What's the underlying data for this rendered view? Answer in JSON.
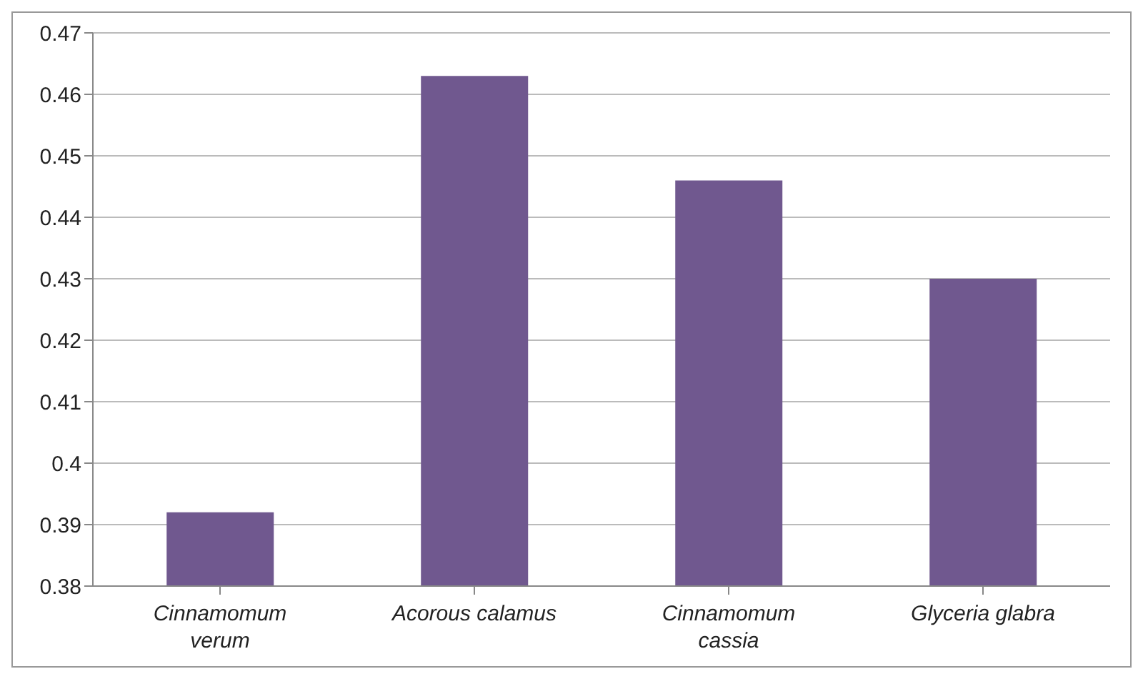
{
  "chart_data": {
    "type": "bar",
    "categories": [
      "Cinnamomum verum",
      "Acorous calamus",
      "Cinnamomum cassia",
      "Glyceria glabra"
    ],
    "values": [
      0.392,
      0.463,
      0.446,
      0.43
    ],
    "color": "#70588f",
    "ylim": [
      0.38,
      0.47
    ],
    "yticks": [
      0.38,
      0.39,
      0.4,
      0.41,
      0.42,
      0.43,
      0.44,
      0.45,
      0.46,
      0.47
    ],
    "grid": "y"
  }
}
